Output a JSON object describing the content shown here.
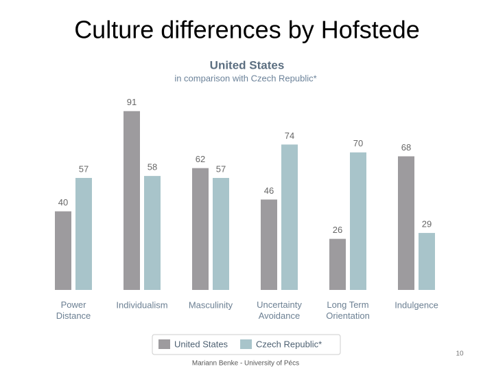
{
  "slide_title": "Culture differences by Hofstede",
  "footer": "Mariann Benke - University of Pécs",
  "page_number": "10",
  "chart_data": {
    "type": "bar",
    "title": "United States",
    "subtitle": "in comparison with Czech Republic*",
    "categories": [
      "Power Distance",
      "Individualism",
      "Masculinity",
      "Uncertainty Avoidance",
      "Long Term Orientation",
      "Indulgence"
    ],
    "series": [
      {
        "name": "United States",
        "color": "#9d9b9e",
        "values": [
          40,
          91,
          62,
          46,
          26,
          68
        ]
      },
      {
        "name": "Czech Republic*",
        "color": "#a8c4ca",
        "values": [
          57,
          58,
          57,
          74,
          70,
          29
        ]
      }
    ],
    "legend": "bottom"
  }
}
